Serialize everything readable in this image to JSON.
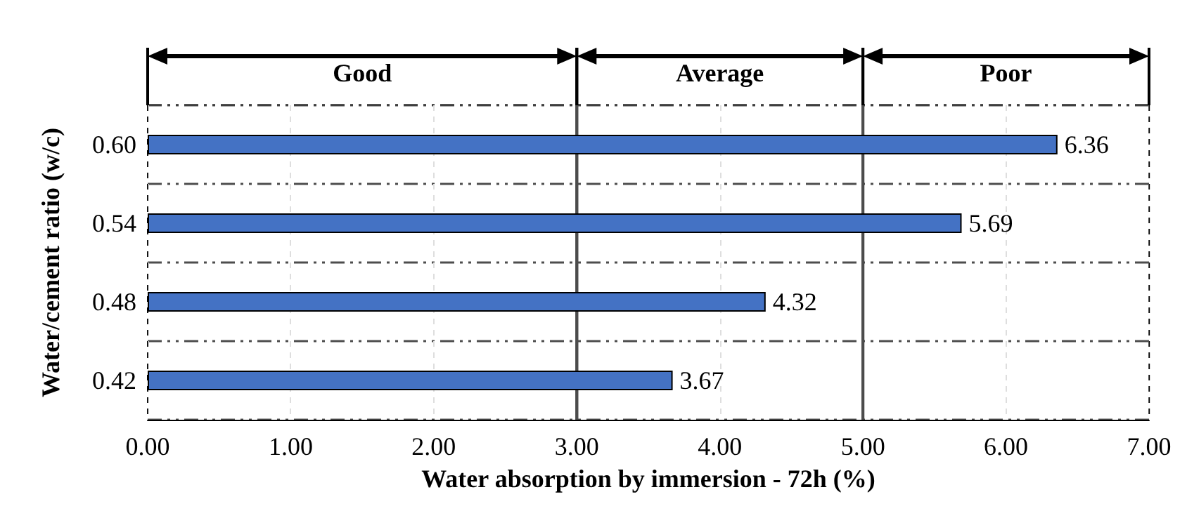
{
  "chart_data": {
    "type": "bar",
    "orientation": "horizontal",
    "categories": [
      "0.60",
      "0.54",
      "0.48",
      "0.42"
    ],
    "values": [
      6.36,
      5.69,
      4.32,
      3.67
    ],
    "color": "#4472c4",
    "xlabel": "Water absorption by immersion - 72h (%)",
    "ylabel": "Water/cement ratio (w/c)",
    "xlim": [
      0,
      7
    ],
    "xticks": [
      {
        "value": 0,
        "label": "0.00"
      },
      {
        "value": 1,
        "label": "1.00"
      },
      {
        "value": 2,
        "label": "2.00"
      },
      {
        "value": 3,
        "label": "3.00"
      },
      {
        "value": 4,
        "label": "4.00"
      },
      {
        "value": 5,
        "label": "5.00"
      },
      {
        "value": 6,
        "label": "6.00"
      },
      {
        "value": 7,
        "label": "7.00"
      }
    ],
    "bands": [
      {
        "axis": "x",
        "from": 0,
        "to": 3,
        "label": "Good",
        "color": "#ffffff"
      },
      {
        "axis": "x",
        "from": 3,
        "to": 5,
        "label": "Average",
        "color": "#ffffff"
      },
      {
        "axis": "x",
        "from": 5,
        "to": 7,
        "label": "Poor",
        "color": "#ffffff"
      }
    ],
    "data_labels": true,
    "grid": true
  }
}
